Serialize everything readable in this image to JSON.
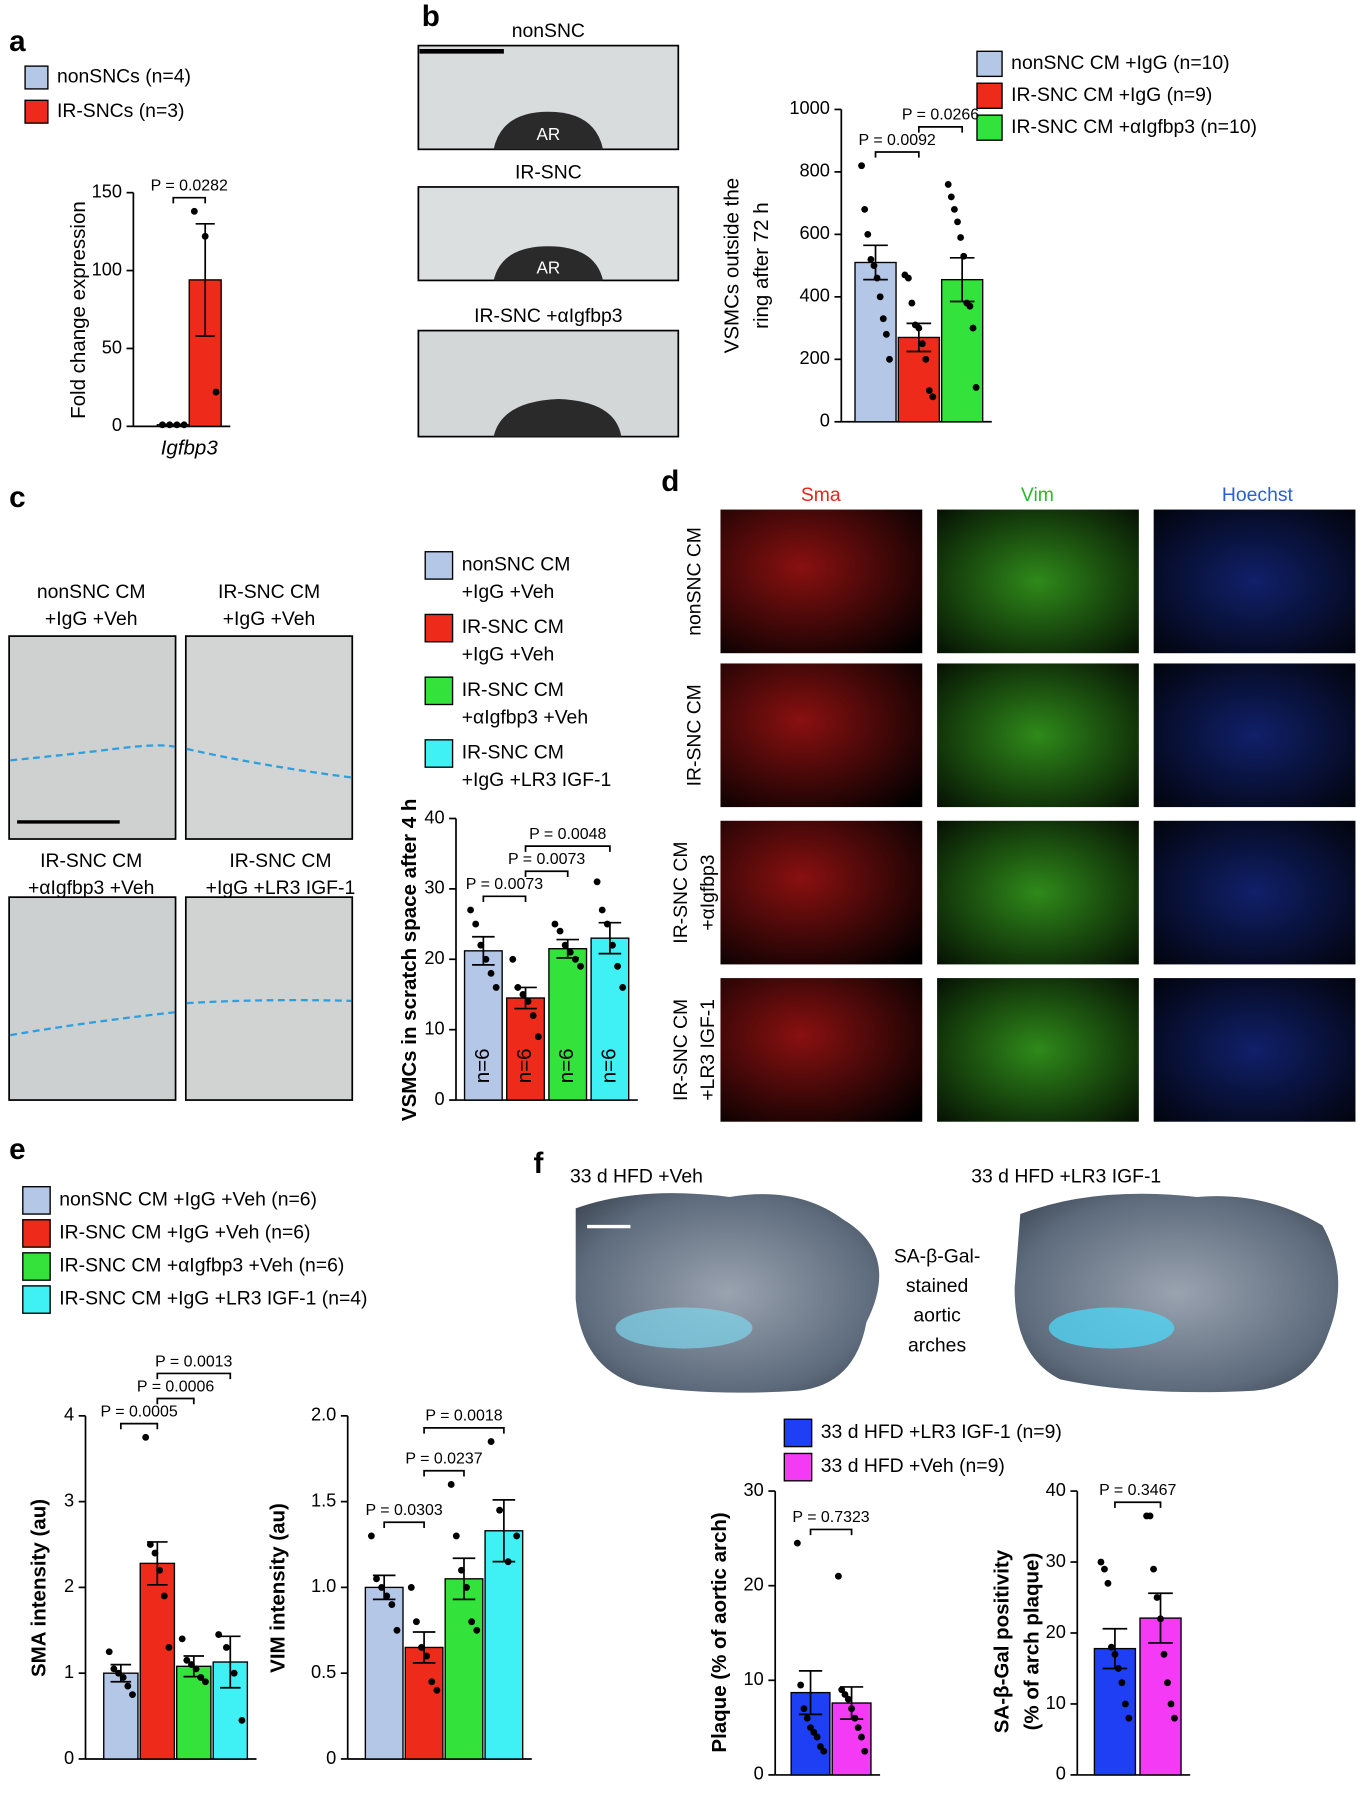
{
  "panel_letters": [
    "a",
    "b",
    "c",
    "d",
    "e",
    "f"
  ],
  "panel_b_images": {
    "labels": [
      "nonSNC",
      "IR-SNC",
      "IR-SNC +αIgfbp3"
    ],
    "ring_labels": [
      "AR",
      "AR"
    ]
  },
  "panel_c_images": {
    "labels": [
      [
        "nonSNC CM",
        "+IgG +Veh"
      ],
      [
        "IR-SNC CM",
        "+IgG +Veh"
      ],
      [
        "IR-SNC CM",
        "+αIgfbp3 +Veh"
      ],
      [
        "IR-SNC CM",
        "+IgG +LR3 IGF-1"
      ]
    ]
  },
  "panel_d_images": {
    "columns": [
      "Sma",
      "Vim",
      "Hoechst"
    ],
    "rows": [
      [
        "nonSNC CM"
      ],
      [
        "IR-SNC CM"
      ],
      [
        "IR-SNC CM",
        "+αIgfbp3"
      ],
      [
        "IR-SNC CM",
        "+LR3 IGF-1"
      ]
    ]
  },
  "panel_f_images": {
    "labels": [
      "33 d HFD +Veh",
      "33 d HFD +LR3 IGF-1"
    ],
    "caption": [
      "SA-β-Gal-",
      "stained",
      "aortic",
      "arches"
    ]
  },
  "chart_data": [
    {
      "type": "bar",
      "ylabel": [
        "Fold change expression"
      ],
      "categories": [
        "Igfbp3"
      ],
      "ylim": [
        0,
        150
      ],
      "yticks": [
        0,
        50,
        100,
        150
      ],
      "series": [
        {
          "name": "nonSNCs (n=4)",
          "color": "#b4c7e7",
          "values": [
            1
          ],
          "errors": [
            0.3
          ],
          "points": [
            [
              1,
              1,
              1,
              1
            ]
          ]
        },
        {
          "name": "IR-SNCs  (n=3)",
          "color": "#ee2a1b",
          "values": [
            94
          ],
          "errors": [
            36
          ],
          "points": [
            [
              138,
              122,
              22
            ]
          ]
        }
      ],
      "annotations": [
        {
          "text": "P = 0.0282",
          "between": [
            0,
            1
          ]
        }
      ]
    },
    {
      "type": "bar",
      "ylabel": [
        "VSMCs outside the",
        "ring after 72 h"
      ],
      "categories": [
        null
      ],
      "ylim": [
        0,
        1000
      ],
      "yticks": [
        0,
        200,
        400,
        600,
        800,
        1000
      ],
      "series": [
        {
          "name": "nonSNC CM +IgG (n=10)",
          "color": "#b4c7e7",
          "values": [
            510
          ],
          "errors": [
            55
          ],
          "points": [
            [
              820,
              680,
              600,
              520,
              500,
              460,
              400,
              330,
              280,
              200
            ]
          ]
        },
        {
          "name": "IR-SNC CM +IgG (n=9)",
          "color": "#ee2a1b",
          "values": [
            270
          ],
          "errors": [
            45
          ],
          "points": [
            [
              470,
              460,
              380,
              310,
              300,
              250,
              200,
              100,
              80
            ]
          ]
        },
        {
          "name": "IR-SNC CM +αIgfbp3 (n=10)",
          "color": "#33e23a",
          "values": [
            455
          ],
          "errors": [
            70
          ],
          "points": [
            [
              760,
              720,
              680,
              640,
              590,
              530,
              380,
              370,
              300,
              110
            ]
          ]
        }
      ],
      "annotations": [
        {
          "text": "P = 0.0092",
          "between": [
            0,
            1
          ]
        },
        {
          "text": "P = 0.0266",
          "between": [
            1,
            2
          ]
        }
      ]
    },
    {
      "type": "bar",
      "ylabel": [
        "VSMCs in scratch space after 4 h"
      ],
      "categories": [
        null
      ],
      "ylim": [
        0,
        40
      ],
      "yticks": [
        0,
        10,
        20,
        30,
        40
      ],
      "series": [
        {
          "name": [
            "nonSNC CM",
            "+IgG +Veh"
          ],
          "color": "#b4c7e7",
          "values": [
            21.2
          ],
          "errors": [
            2
          ],
          "points": [
            [
              27,
              25,
              22,
              20,
              18,
              16
            ]
          ],
          "bar_text": "n=6"
        },
        {
          "name": [
            "IR-SNC CM",
            "+IgG +Veh"
          ],
          "color": "#ee2a1b",
          "values": [
            14.5
          ],
          "errors": [
            1.5
          ],
          "points": [
            [
              20,
              16,
              15,
              14,
              12,
              9
            ]
          ],
          "bar_text": "n=6"
        },
        {
          "name": [
            "IR-SNC CM",
            "+αIgfbp3 +Veh"
          ],
          "color": "#33e23a",
          "values": [
            21.5
          ],
          "errors": [
            1.3
          ],
          "points": [
            [
              25,
              24,
              22,
              21,
              20,
              19
            ]
          ],
          "bar_text": "n=6"
        },
        {
          "name": [
            "IR-SNC CM",
            "+IgG +LR3 IGF-1"
          ],
          "color": "#3ff0f5",
          "values": [
            23
          ],
          "errors": [
            2.2
          ],
          "points": [
            [
              31,
              27,
              25,
              22,
              19,
              16
            ]
          ],
          "bar_text": "n=6"
        }
      ],
      "annotations": [
        {
          "text": "P = 0.0073",
          "between": [
            0,
            1
          ]
        },
        {
          "text": "P = 0.0073",
          "between": [
            1,
            2
          ]
        },
        {
          "text": "P = 0.0048",
          "between": [
            1,
            3
          ]
        }
      ]
    },
    {
      "type": "bar",
      "ylabel": [
        "SMA intensity (au)"
      ],
      "categories": [
        null
      ],
      "ylim": [
        0,
        4
      ],
      "yticks": [
        0,
        1,
        2,
        3,
        4
      ],
      "series": [
        {
          "name": "nonSNC CM +IgG +Veh (n=6)",
          "color": "#b4c7e7",
          "values": [
            1.0
          ],
          "errors": [
            0.1
          ],
          "points": [
            [
              1.25,
              1.05,
              1.0,
              0.95,
              0.85,
              0.75
            ]
          ]
        },
        {
          "name": "IR-SNC CM +IgG +Veh (n=6)",
          "color": "#ee2a1b",
          "values": [
            2.28
          ],
          "errors": [
            0.25
          ],
          "points": [
            [
              3.75,
              2.5,
              2.4,
              2.2,
              1.9,
              1.3
            ]
          ]
        },
        {
          "name": "IR-SNC CM +αIgfbp3 +Veh (n=6)",
          "color": "#33e23a",
          "values": [
            1.08
          ],
          "errors": [
            0.12
          ],
          "points": [
            [
              1.4,
              1.15,
              1.1,
              1.05,
              0.95,
              0.9
            ]
          ]
        },
        {
          "name": "IR-SNC CM +IgG +LR3 IGF-1 (n=4)",
          "color": "#3ff0f5",
          "values": [
            1.13
          ],
          "errors": [
            0.3
          ],
          "points": [
            [
              1.45,
              1.3,
              1.0,
              0.45
            ]
          ]
        }
      ],
      "annotations": [
        {
          "text": "P = 0.0005",
          "between": [
            0,
            1
          ]
        },
        {
          "text": "P = 0.0006",
          "between": [
            1,
            2
          ]
        },
        {
          "text": "P = 0.0013",
          "between": [
            1,
            3
          ]
        }
      ]
    },
    {
      "type": "bar",
      "ylabel": [
        "VIM intensity (au)"
      ],
      "categories": [
        null
      ],
      "ylim": [
        0,
        2
      ],
      "yticks": [
        0,
        0.5,
        {
          "value": 1,
          "label": "1.0"
        },
        1.5,
        {
          "value": 2,
          "label": "2.0"
        }
      ],
      "series": [
        {
          "color": "#b4c7e7",
          "values": [
            1.0
          ],
          "errors": [
            0.07
          ],
          "points": [
            [
              1.3,
              1.05,
              1.0,
              0.95,
              0.9,
              0.75
            ]
          ]
        },
        {
          "color": "#ee2a1b",
          "values": [
            0.65
          ],
          "errors": [
            0.09
          ],
          "points": [
            [
              1.0,
              0.8,
              0.65,
              0.6,
              0.45,
              0.4
            ]
          ]
        },
        {
          "color": "#33e23a",
          "values": [
            1.05
          ],
          "errors": [
            0.12
          ],
          "points": [
            [
              1.6,
              1.3,
              1.1,
              1.0,
              0.8,
              0.75
            ]
          ]
        },
        {
          "color": "#3ff0f5",
          "values": [
            1.33
          ],
          "errors": [
            0.18
          ],
          "points": [
            [
              1.85,
              1.45,
              1.15,
              1.3
            ]
          ]
        }
      ],
      "annotations": [
        {
          "text": "P = 0.0303",
          "between": [
            0,
            1
          ]
        },
        {
          "text": "P = 0.0237",
          "between": [
            1,
            2
          ]
        },
        {
          "text": "P = 0.0018",
          "between": [
            1,
            3
          ]
        }
      ]
    },
    {
      "type": "bar",
      "ylabel": [
        "Plaque (% of aortic arch)"
      ],
      "categories": [
        null
      ],
      "ylim": [
        0,
        30
      ],
      "yticks": [
        0,
        10,
        20,
        30
      ],
      "series": [
        {
          "name": "33 d HFD +LR3 IGF-1 (n=9)",
          "color": "#1f3ff5",
          "values": [
            8.7
          ],
          "errors": [
            2.3
          ],
          "points": [
            [
              24.5,
              9.5,
              7,
              6,
              5,
              4.5,
              4,
              3,
              2.5
            ]
          ]
        },
        {
          "name": "33 d HFD +Veh (n=9)",
          "color": "#f53af5",
          "values": [
            7.6
          ],
          "errors": [
            1.7
          ],
          "points": [
            [
              21,
              9,
              8.5,
              8,
              7,
              6,
              5,
              4,
              2.5
            ]
          ]
        }
      ],
      "annotations": [
        {
          "text": "P = 0.7323",
          "between": [
            0,
            1
          ]
        }
      ]
    },
    {
      "type": "bar",
      "ylabel": [
        "SA-β-Gal positivity",
        "(% of arch plaque)"
      ],
      "categories": [
        null
      ],
      "ylim": [
        0,
        40
      ],
      "yticks": [
        0,
        10,
        20,
        30,
        40
      ],
      "series": [
        {
          "color": "#1f3ff5",
          "values": [
            17.8
          ],
          "errors": [
            2.8
          ],
          "points": [
            [
              30,
              29,
              27,
              18,
              17,
              15,
              13,
              10,
              8
            ]
          ]
        },
        {
          "color": "#f53af5",
          "values": [
            22.1
          ],
          "errors": [
            3.5
          ],
          "points": [
            [
              36.5,
              36.5,
              29,
              25,
              22,
              17,
              13,
              10,
              8
            ]
          ]
        }
      ],
      "annotations": [
        {
          "text": "P = 0.3467",
          "between": [
            0,
            1
          ]
        }
      ]
    }
  ]
}
